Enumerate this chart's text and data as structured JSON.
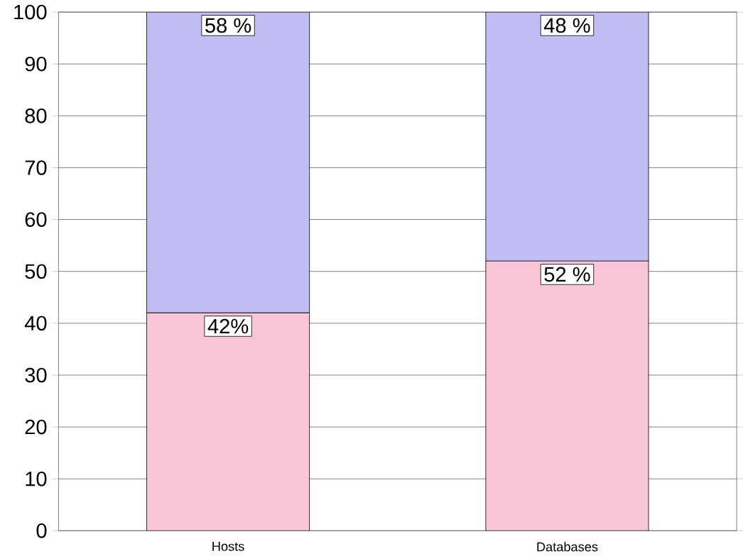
{
  "chart_data": {
    "type": "bar",
    "stacked": true,
    "categories": [
      "Hosts",
      "Databases"
    ],
    "series": [
      {
        "color": "#f9c6d6",
        "values": [
          42,
          52
        ],
        "value_labels": [
          "42%",
          "52 %"
        ]
      },
      {
        "color": "#c2bdf2",
        "values": [
          58,
          48
        ],
        "value_labels": [
          "58 %",
          "48 %"
        ]
      }
    ],
    "ylim": [
      0,
      100
    ],
    "yticks": [
      0,
      10,
      20,
      30,
      40,
      50,
      60,
      70,
      80,
      90,
      100
    ],
    "grid": "y"
  }
}
